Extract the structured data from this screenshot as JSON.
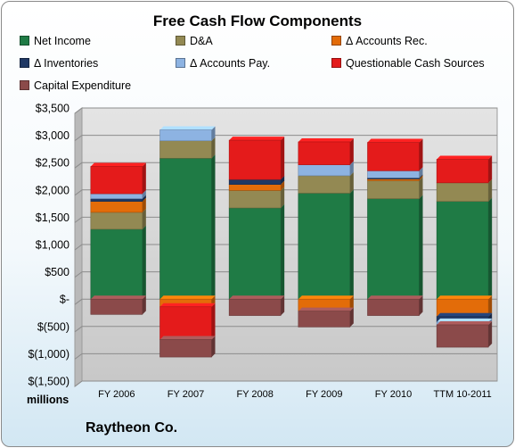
{
  "chart_data": {
    "type": "bar",
    "stacked": true,
    "title": "Free Cash Flow Components",
    "units_label": "millions",
    "company": "Raytheon Co.",
    "categories": [
      "FY 2006",
      "FY 2007",
      "FY 2008",
      "FY 2009",
      "FY 2010",
      "TTM 10-2011"
    ],
    "ylim": [
      -1500,
      3500
    ],
    "yticks": [
      3500,
      3000,
      2500,
      2000,
      1500,
      1000,
      500,
      0,
      -500,
      -1000,
      -1500
    ],
    "ytick_labels": [
      "$3,500",
      "$3,000",
      "$2,500",
      "$2,000",
      "$1,500",
      "$1,000",
      "$500",
      "$-",
      "$(500)",
      "$(1,000)",
      "$(1,500)"
    ],
    "grid": true,
    "legend_position": "top",
    "series": [
      {
        "name": "Net Income",
        "color": "#1f7b45",
        "values": [
          1280,
          2580,
          1670,
          1940,
          1840,
          1790
        ]
      },
      {
        "name": "D&A",
        "color": "#938953",
        "values": [
          310,
          320,
          320,
          320,
          330,
          340
        ]
      },
      {
        "name": "Δ Accounts Rec.",
        "color": "#e36c09",
        "values": [
          200,
          -140,
          110,
          -220,
          30,
          -320
        ]
      },
      {
        "name": "Δ Inventories",
        "color": "#1f3864",
        "values": [
          50,
          0,
          90,
          0,
          20,
          -100
        ]
      },
      {
        "name": "Δ Accounts Pay.",
        "color": "#8db3e2",
        "values": [
          90,
          200,
          0,
          200,
          130,
          -50
        ]
      },
      {
        "name": "Questionable Cash Sources",
        "color": "#e41b1b",
        "values": [
          500,
          -600,
          720,
          420,
          520,
          430
        ]
      },
      {
        "name": "Capital Expenditure",
        "color": "#8b4a4a",
        "values": [
          -280,
          -320,
          -300,
          -290,
          -300,
          -410
        ]
      }
    ]
  }
}
